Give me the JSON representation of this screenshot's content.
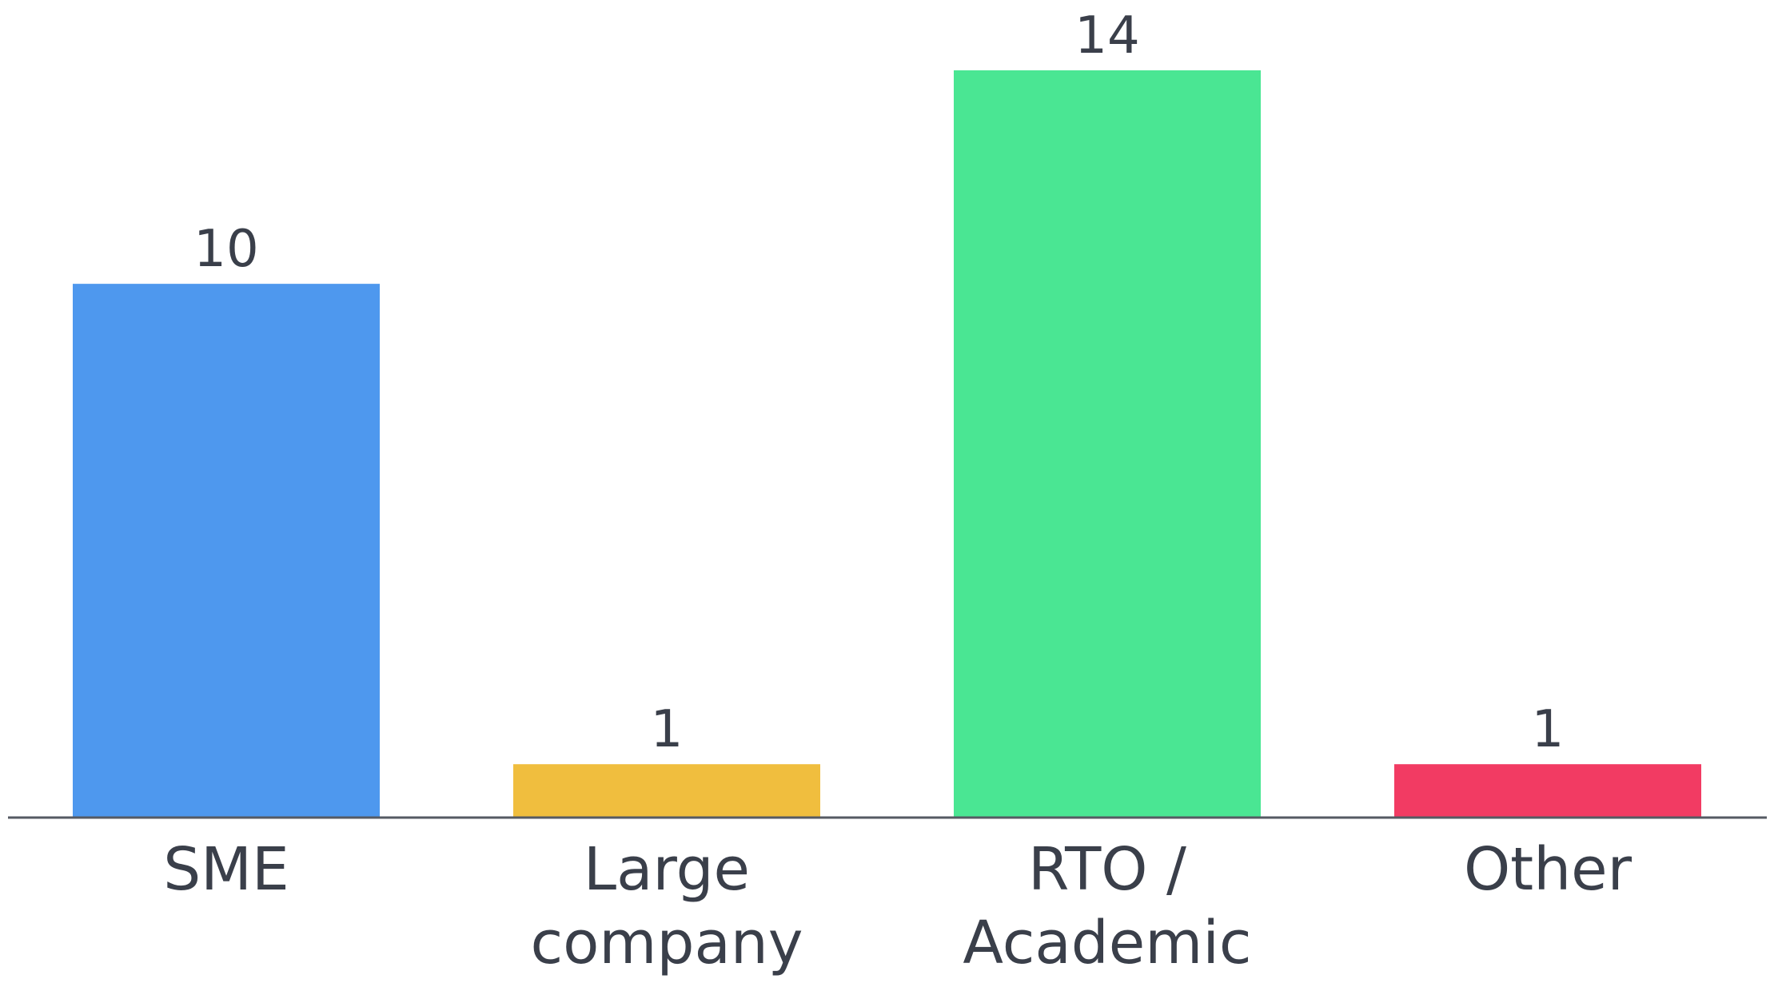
{
  "chart_data": {
    "type": "bar",
    "categories": [
      [
        "SME"
      ],
      [
        "Large",
        "company"
      ],
      [
        "RTO /",
        "Academic"
      ],
      [
        "Other"
      ]
    ],
    "values": [
      10,
      1,
      14,
      1
    ],
    "colors": [
      "#4e98ee",
      "#f0be3e",
      "#4ae693",
      "#f23b63"
    ],
    "axis_color": "#555a63",
    "text_color": "#3a3f4a",
    "ylim": [
      0,
      14
    ],
    "grid": false,
    "legend": "none"
  }
}
